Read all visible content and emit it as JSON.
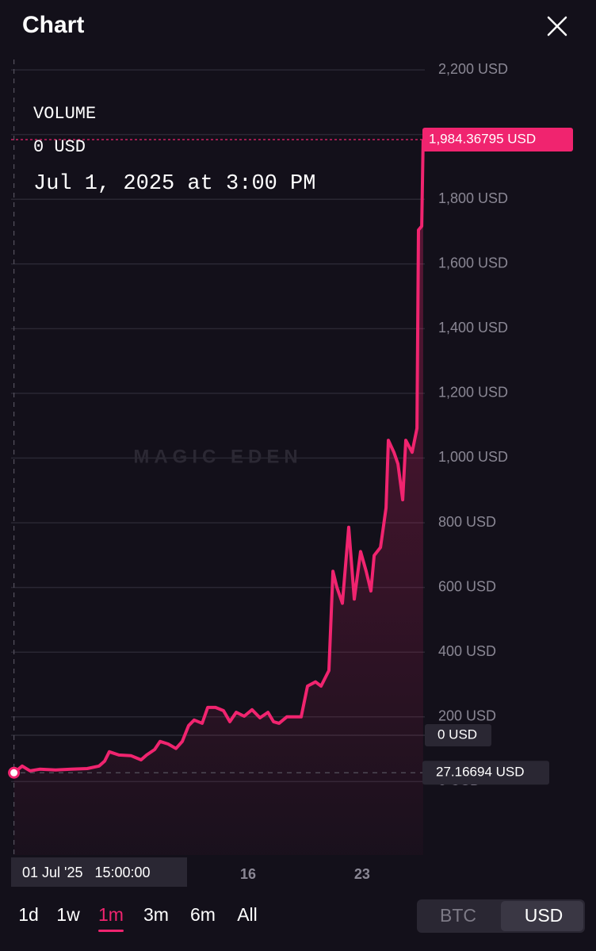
{
  "header": {
    "title": "Chart"
  },
  "chart_data": {
    "type": "area",
    "watermark": "MAGIC EDEN",
    "legend": {
      "title": "VOLUME",
      "value": 0,
      "value_label": "0 USD",
      "date": "Jul 1, 2025 at 3:00 PM"
    },
    "series": [
      {
        "name": "Price",
        "color": "#f0246f",
        "x": [
          1.625,
          2.13,
          2.62,
          3.2,
          4.18,
          5.15,
          6.12,
          6.85,
          7.19,
          7.48,
          8.07,
          8.8,
          9.43,
          9.77,
          10.26,
          10.6,
          11.09,
          11.57,
          11.96,
          12.35,
          12.69,
          13.18,
          13.52,
          14.0,
          14.49,
          14.88,
          15.27,
          15.76,
          16.24,
          16.73,
          17.22,
          17.56,
          17.9,
          18.38,
          19.26,
          19.65,
          20.14,
          20.48,
          20.96,
          21.21,
          21.45,
          21.79,
          22.18,
          22.52,
          22.91,
          23.25,
          23.54,
          23.74,
          24.13,
          24.47,
          24.61,
          24.95,
          25.2,
          25.49,
          25.68,
          26.07,
          26.37,
          26.46,
          26.66,
          26.75
        ],
        "values": [
          27.16694,
          48,
          33,
          38,
          36,
          38,
          40,
          48,
          63,
          92,
          82,
          80,
          67,
          82,
          99,
          124,
          116,
          102,
          124,
          173,
          190,
          180,
          229,
          229,
          219,
          185,
          214,
          202,
          222,
          197,
          214,
          185,
          180,
          200,
          200,
          295,
          308,
          295,
          343,
          650,
          601,
          551,
          786,
          564,
          711,
          650,
          589,
          699,
          724,
          846,
          1055,
          1018,
          982,
          871,
          1055,
          1018,
          1092,
          1705,
          1717,
          1984.36795
        ]
      }
    ],
    "price_tags": [
      {
        "value": 1984.36795,
        "label": "1,984.36795 USD",
        "color": "#f0246f"
      },
      {
        "value": 27.16694,
        "label": "27.16694 USD",
        "color": "#2a2733"
      }
    ],
    "volume_axis": {
      "value": 0,
      "label": "0 USD"
    },
    "crosshair_label": "01 Jul '25   15:00:00",
    "xlim": [
      1.45,
      26.85
    ],
    "xticks": [
      16,
      23
    ],
    "ylim": [
      -227.2,
      2232.1
    ],
    "yticks": [
      {
        "value": 0,
        "label": "0 USD"
      },
      {
        "value": 200,
        "label": "200 USD"
      },
      {
        "value": 400,
        "label": "400 USD"
      },
      {
        "value": 600,
        "label": "600 USD"
      },
      {
        "value": 800,
        "label": "800 USD"
      },
      {
        "value": 1000,
        "label": "1,000 USD"
      },
      {
        "value": 1200,
        "label": "1,200 USD"
      },
      {
        "value": 1400,
        "label": "1,400 USD"
      },
      {
        "value": 1600,
        "label": "1,600 USD"
      },
      {
        "value": 1800,
        "label": "1,800 USD"
      },
      {
        "value": 2000,
        "label": "2,000 USD"
      },
      {
        "value": 2200,
        "label": "2,200 USD"
      }
    ],
    "grid": true
  },
  "controls": {
    "ranges": [
      "1d",
      "1w",
      "1m",
      "3m",
      "6m",
      "All"
    ],
    "active_range": 2,
    "currencies": [
      "BTC",
      "USD"
    ],
    "active_currency": 1
  }
}
